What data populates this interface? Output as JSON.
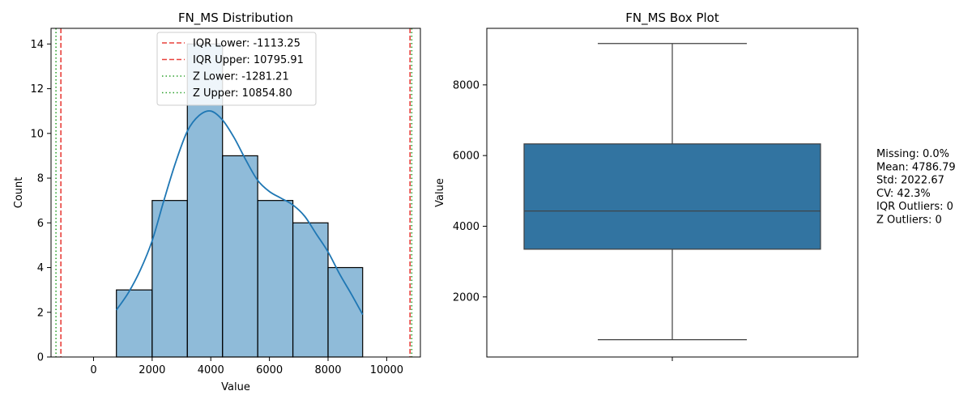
{
  "chart_data": [
    {
      "type": "histogram",
      "title": "FN_MS Distribution",
      "xlabel": "Value",
      "ylabel": "Count",
      "xlim": [
        -1450,
        11150
      ],
      "ylim": [
        0,
        14.7
      ],
      "xticks": [
        0,
        2000,
        4000,
        6000,
        8000,
        10000
      ],
      "yticks": [
        0,
        2,
        4,
        6,
        8,
        10,
        12,
        14
      ],
      "bar_color": "#1f77b4",
      "bars": [
        {
          "x0": 780,
          "x1": 2000,
          "count": 3
        },
        {
          "x0": 2000,
          "x1": 3200,
          "count": 7
        },
        {
          "x0": 3200,
          "x1": 4400,
          "count": 14
        },
        {
          "x0": 4400,
          "x1": 5600,
          "count": 9
        },
        {
          "x0": 5600,
          "x1": 6800,
          "count": 7
        },
        {
          "x0": 6800,
          "x1": 8000,
          "count": 6
        },
        {
          "x0": 8000,
          "x1": 9180,
          "count": 4
        }
      ],
      "kde_color": "#1f77b4",
      "kde": [
        [
          780,
          2.1
        ],
        [
          1200,
          2.9
        ],
        [
          1600,
          3.9
        ],
        [
          2000,
          5.2
        ],
        [
          2400,
          7.0
        ],
        [
          2800,
          8.7
        ],
        [
          3200,
          10.1
        ],
        [
          3600,
          10.8
        ],
        [
          4000,
          11.0
        ],
        [
          4400,
          10.6
        ],
        [
          4800,
          9.8
        ],
        [
          5200,
          8.8
        ],
        [
          5600,
          7.9
        ],
        [
          6000,
          7.4
        ],
        [
          6400,
          7.1
        ],
        [
          6800,
          6.8
        ],
        [
          7200,
          6.3
        ],
        [
          7600,
          5.5
        ],
        [
          8000,
          4.7
        ],
        [
          8400,
          3.7
        ],
        [
          8800,
          2.8
        ],
        [
          9180,
          1.9
        ]
      ],
      "lines": [
        {
          "label": "IQR Lower: -1113.25",
          "value": -1113.25,
          "color": "#e8413c",
          "style": "dashed"
        },
        {
          "label": "IQR Upper: 10795.91",
          "value": 10795.91,
          "color": "#e8413c",
          "style": "dashed"
        },
        {
          "label": "Z Lower: -1281.21",
          "value": -1281.21,
          "color": "#2ca02c",
          "style": "dotted"
        },
        {
          "label": "Z Upper: 10854.80",
          "value": 10854.8,
          "color": "#2ca02c",
          "style": "dotted"
        }
      ],
      "legend_position": "top-center"
    },
    {
      "type": "box",
      "title": "FN_MS Box Plot",
      "xlabel": "",
      "ylabel": "Value",
      "ylim": [
        300,
        9600
      ],
      "yticks": [
        2000,
        4000,
        6000,
        8000
      ],
      "box_color": "#3274a1",
      "whisker_low": 790,
      "q1": 3350,
      "median": 4430,
      "q3": 6330,
      "whisker_high": 9170
    }
  ],
  "stats": [
    "Missing: 0.0%",
    "Mean: 4786.79",
    "Std: 2022.67",
    "CV: 42.3%",
    "IQR Outliers: 0",
    "Z Outliers: 0"
  ]
}
